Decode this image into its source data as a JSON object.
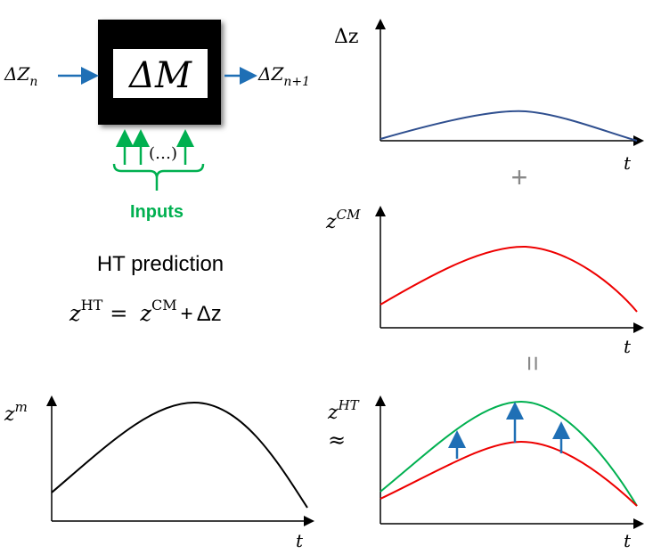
{
  "model": {
    "input": {
      "base": "ΔZ",
      "sub": "n"
    },
    "label": "ΔM",
    "output": {
      "base": "ΔZ",
      "sub": "n+1"
    },
    "ellipsis": "(…)",
    "inputs_label": "Inputs"
  },
  "prediction": {
    "title": "HT prediction",
    "equation": {
      "lhs_base": "z",
      "lhs_sup": "HT",
      "equals": "=",
      "term1_base": "z",
      "term1_sup": "CM",
      "plus": "+",
      "term2": "Δz"
    }
  },
  "plots": [
    {
      "y_label": {
        "base": "Δz"
      },
      "x_label": "t"
    },
    {
      "y_label": {
        "base": "z",
        "sup": "CM"
      },
      "x_label": "t"
    },
    {
      "y_label": {
        "base": "z",
        "sup": "m"
      },
      "x_label": "t"
    },
    {
      "y_label": {
        "base": "z",
        "sup": "HT"
      },
      "x_label": "t"
    }
  ],
  "symbols": {
    "plus": "+",
    "equals": "=",
    "approx": "≈"
  }
}
